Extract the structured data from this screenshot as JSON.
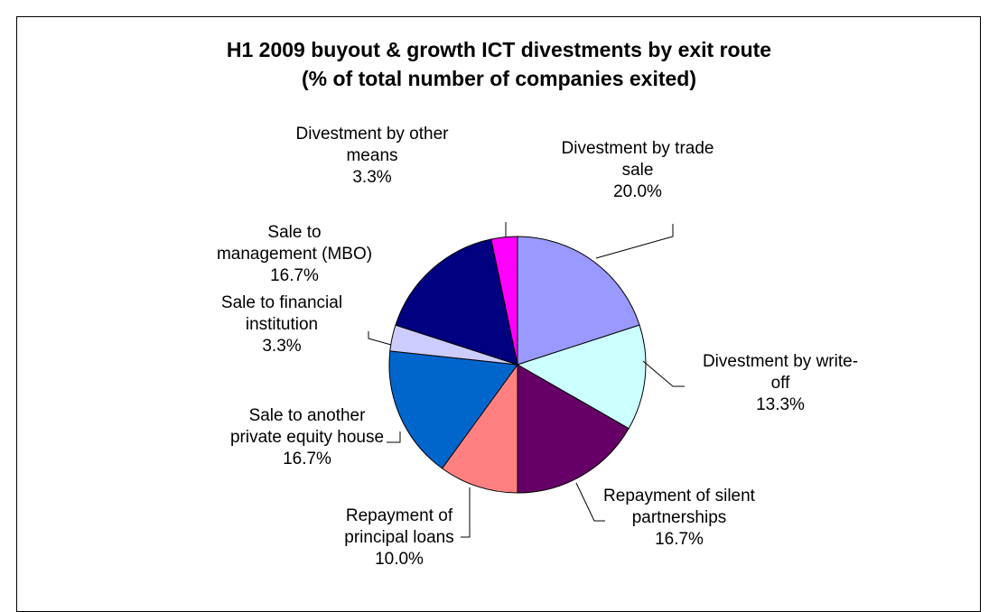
{
  "chart_data": {
    "type": "pie",
    "title": [
      "H1 2009 buyout & growth ICT divestments by exit route",
      "(% of total number of companies exited)"
    ],
    "slices": [
      {
        "label": [
          "Divestment by trade",
          "sale"
        ],
        "value": 20.0,
        "value_label": "20.0%",
        "color": "#9999FF"
      },
      {
        "label": [
          "Divestment by write-",
          "off"
        ],
        "value": 13.3,
        "value_label": "13.3%",
        "color": "#CCFFFF"
      },
      {
        "label": [
          "Repayment of silent",
          "partnerships"
        ],
        "value": 16.7,
        "value_label": "16.7%",
        "color": "#660066"
      },
      {
        "label": [
          "Repayment of",
          "principal loans"
        ],
        "value": 10.0,
        "value_label": "10.0%",
        "color": "#FF8080"
      },
      {
        "label": [
          "Sale to another",
          "private equity house"
        ],
        "value": 16.7,
        "value_label": "16.7%",
        "color": "#0066CC"
      },
      {
        "label": [
          "Sale to financial",
          "institution"
        ],
        "value": 3.3,
        "value_label": "3.3%",
        "color": "#CCCCFF"
      },
      {
        "label": [
          "Sale to",
          "management (MBO)"
        ],
        "value": 16.7,
        "value_label": "16.7%",
        "color": "#000080"
      },
      {
        "label": [
          "Divestment by other",
          "means"
        ],
        "value": 3.3,
        "value_label": "3.3%",
        "color": "#FF00FF"
      }
    ]
  }
}
